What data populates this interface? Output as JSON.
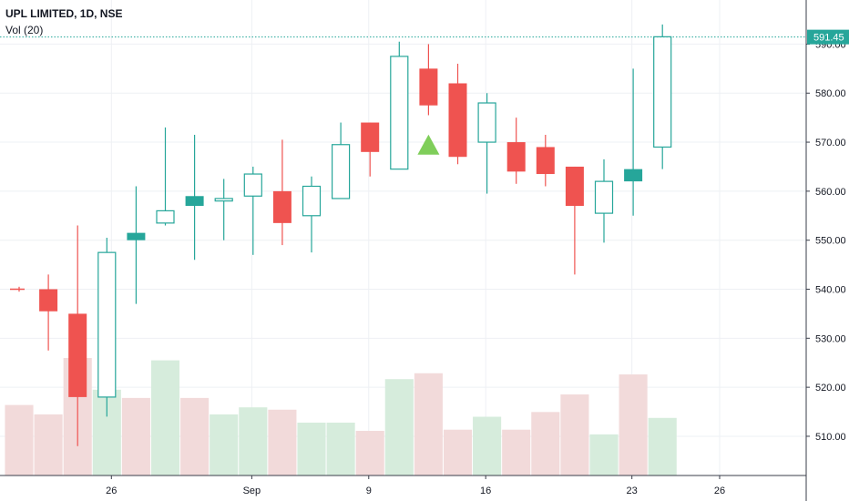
{
  "header": {
    "symbol_title": "UPL LIMITED, 1D, NSE",
    "indicator_label": "Vol (20)"
  },
  "price_badge": "591.45",
  "colors": {
    "up": "#26a69a",
    "down": "#ef5350",
    "up_volume": "#d6ecdc",
    "down_volume": "#f2dada",
    "price_line": "#26a69a",
    "grid": "#eef0f4",
    "axis_text": "#131722",
    "signal": "#7fce5a"
  },
  "chart_data": {
    "type": "candlestick",
    "title": "UPL LIMITED, 1D, NSE",
    "y_axis": {
      "ticks": [
        510,
        520,
        530,
        540,
        550,
        560,
        570,
        580,
        590
      ],
      "labels": [
        "510.00",
        "520.00",
        "530.00",
        "540.00",
        "550.00",
        "560.00",
        "570.00",
        "580.00",
        "590.00"
      ],
      "range": [
        502,
        599
      ]
    },
    "x_axis": {
      "labels": [
        {
          "text": "26",
          "index": 3
        },
        {
          "text": "Sep",
          "index": 7.8
        },
        {
          "text": "9",
          "index": 11.8
        },
        {
          "text": "16",
          "index": 15.8
        },
        {
          "text": "23",
          "index": 20.8
        },
        {
          "text": "26",
          "index": 23.8
        }
      ]
    },
    "candles": [
      {
        "open": 540.0,
        "high": 540.5,
        "low": 539.5,
        "close": 540.0,
        "dir": "down",
        "flat": true
      },
      {
        "open": 540.0,
        "high": 543.0,
        "low": 527.5,
        "close": 535.5,
        "dir": "down"
      },
      {
        "open": 535.0,
        "high": 553.0,
        "low": 508.0,
        "close": 518.0,
        "dir": "down"
      },
      {
        "open": 518.0,
        "high": 550.5,
        "low": 514.0,
        "close": 547.5,
        "dir": "up"
      },
      {
        "open": 550.0,
        "high": 561.0,
        "low": 537.0,
        "close": 551.5,
        "dir": "up",
        "solid": true
      },
      {
        "open": 553.5,
        "high": 573.0,
        "low": 553.0,
        "close": 556.0,
        "dir": "up"
      },
      {
        "open": 557.0,
        "high": 571.5,
        "low": 546.0,
        "close": 559.0,
        "dir": "up",
        "solid": true
      },
      {
        "open": 558.0,
        "high": 562.5,
        "low": 550.0,
        "close": 558.5,
        "dir": "up"
      },
      {
        "open": 559.0,
        "high": 565.0,
        "low": 547.0,
        "close": 563.5,
        "dir": "up"
      },
      {
        "open": 560.0,
        "high": 570.5,
        "low": 549.0,
        "close": 553.5,
        "dir": "down"
      },
      {
        "open": 555.0,
        "high": 563.0,
        "low": 547.5,
        "close": 561.0,
        "dir": "up"
      },
      {
        "open": 558.5,
        "high": 574.0,
        "low": 558.5,
        "close": 569.5,
        "dir": "up"
      },
      {
        "open": 574.0,
        "high": 574.0,
        "low": 563.0,
        "close": 568.0,
        "dir": "down"
      },
      {
        "open": 564.5,
        "high": 590.5,
        "low": 564.5,
        "close": 587.5,
        "dir": "up"
      },
      {
        "open": 585.0,
        "high": 590.0,
        "low": 575.5,
        "close": 577.5,
        "dir": "down"
      },
      {
        "open": 582.0,
        "high": 586.0,
        "low": 565.5,
        "close": 567.0,
        "dir": "down"
      },
      {
        "open": 570.0,
        "high": 580.0,
        "low": 559.5,
        "close": 578.0,
        "dir": "up"
      },
      {
        "open": 570.0,
        "high": 575.0,
        "low": 561.5,
        "close": 564.0,
        "dir": "down"
      },
      {
        "open": 569.0,
        "high": 571.5,
        "low": 561.0,
        "close": 563.5,
        "dir": "down"
      },
      {
        "open": 565.0,
        "high": 565.0,
        "low": 543.0,
        "close": 557.0,
        "dir": "down"
      },
      {
        "open": 555.5,
        "high": 566.5,
        "low": 549.5,
        "close": 562.0,
        "dir": "up"
      },
      {
        "open": 562.0,
        "high": 585.0,
        "low": 555.0,
        "close": 564.5,
        "dir": "up",
        "solid": true
      },
      {
        "open": 569.0,
        "high": 594.0,
        "low": 564.5,
        "close": 591.5,
        "dir": "up"
      }
    ],
    "volumes": [
      {
        "value": 0.6,
        "dir": "down"
      },
      {
        "value": 0.52,
        "dir": "down"
      },
      {
        "value": 1.0,
        "dir": "down"
      },
      {
        "value": 0.73,
        "dir": "up"
      },
      {
        "value": 0.66,
        "dir": "down"
      },
      {
        "value": 0.98,
        "dir": "up"
      },
      {
        "value": 0.66,
        "dir": "down"
      },
      {
        "value": 0.52,
        "dir": "up"
      },
      {
        "value": 0.58,
        "dir": "up"
      },
      {
        "value": 0.56,
        "dir": "down"
      },
      {
        "value": 0.45,
        "dir": "up"
      },
      {
        "value": 0.45,
        "dir": "up"
      },
      {
        "value": 0.38,
        "dir": "down"
      },
      {
        "value": 0.82,
        "dir": "up"
      },
      {
        "value": 0.87,
        "dir": "down"
      },
      {
        "value": 0.39,
        "dir": "down"
      },
      {
        "value": 0.5,
        "dir": "up"
      },
      {
        "value": 0.39,
        "dir": "down"
      },
      {
        "value": 0.54,
        "dir": "down"
      },
      {
        "value": 0.69,
        "dir": "down"
      },
      {
        "value": 0.35,
        "dir": "up"
      },
      {
        "value": 0.86,
        "dir": "down"
      },
      {
        "value": 0.49,
        "dir": "up"
      }
    ],
    "signal": {
      "type": "buy-triangle",
      "after_index": 14,
      "price": 569.5
    },
    "last_price": 591.45
  }
}
